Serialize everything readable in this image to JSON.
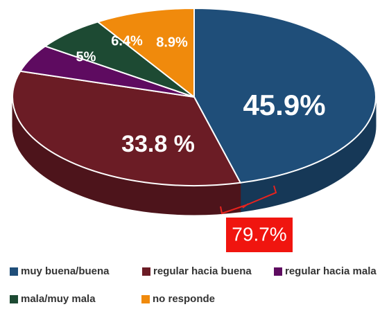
{
  "chart_data": {
    "type": "pie",
    "categories": [
      "muy buena/buena",
      "regular hacia buena",
      "regular hacia mala",
      "mala/muy mala",
      "no responde"
    ],
    "values": [
      45.9,
      33.8,
      5,
      6.4,
      8.9
    ],
    "value_labels": [
      "45.9%",
      "33.8 %",
      "5%",
      "6.4%",
      "8.9%"
    ],
    "colors": [
      "#1f4e79",
      "#6b1c25",
      "#5e0b60",
      "#1d4a33",
      "#f08a0c"
    ],
    "annotation": "79.7%"
  }
}
